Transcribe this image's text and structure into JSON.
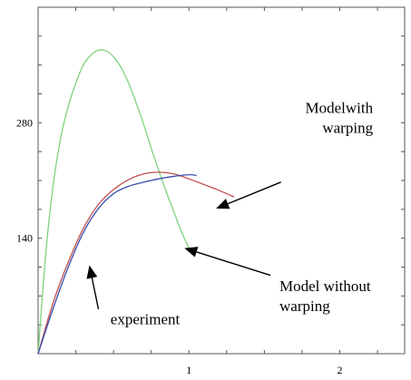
{
  "chart_data": {
    "type": "line",
    "title": "",
    "xlabel": "",
    "ylabel": "",
    "xlim": [
      0,
      2.43
    ],
    "ylim": [
      0,
      420
    ],
    "grid": false,
    "x_ticks": [
      {
        "value": 1,
        "label": "1"
      },
      {
        "value": 2,
        "label": "2"
      }
    ],
    "y_ticks": [
      {
        "value": 140,
        "label": "140"
      },
      {
        "value": 280,
        "label": "280"
      }
    ],
    "series": [
      {
        "name": "Model without warping",
        "color": "#7ed37e",
        "x": [
          0.0,
          0.05,
          0.1,
          0.15,
          0.2,
          0.25,
          0.3,
          0.35,
          0.4,
          0.45,
          0.5,
          0.55,
          0.6,
          0.65,
          0.7,
          0.75,
          0.8,
          0.85,
          0.9,
          0.95,
          1.0
        ],
        "y": [
          0,
          120,
          205,
          262,
          300,
          328,
          350,
          362,
          368,
          367,
          360,
          347,
          328,
          304,
          278,
          249,
          222,
          196,
          172,
          148,
          128
        ]
      },
      {
        "name": "Model with warping",
        "color": "#c0504d",
        "x": [
          0.0,
          0.1,
          0.2,
          0.3,
          0.4,
          0.5,
          0.6,
          0.7,
          0.8,
          0.9,
          1.0,
          1.1,
          1.2,
          1.3
        ],
        "y": [
          0,
          62,
          111,
          152,
          181,
          199,
          211,
          218,
          220,
          218,
          212,
          205,
          198,
          190
        ]
      },
      {
        "name": "experiment",
        "color": "#3a4fb0",
        "x": [
          0.0,
          0.1,
          0.2,
          0.3,
          0.4,
          0.5,
          0.6,
          0.7,
          0.8,
          0.9,
          1.0,
          1.05
        ],
        "y": [
          0,
          55,
          105,
          147,
          176,
          194,
          203,
          208,
          212,
          215,
          217,
          216
        ]
      }
    ],
    "annotations": [
      {
        "text_lines": [
          "Modelwith",
          "warping"
        ],
        "align": "right",
        "x": 2.22,
        "y": 292
      },
      {
        "text_lines": [
          "Model without",
          "warping"
        ],
        "align": "left",
        "x": 1.6,
        "y": 76
      },
      {
        "text_lines": [
          "experiment"
        ],
        "align": "left",
        "x": 0.48,
        "y": 36
      }
    ],
    "arrows": [
      {
        "from": [
          1.61,
          208
        ],
        "to": [
          1.18,
          176
        ]
      },
      {
        "from": [
          1.54,
          95
        ],
        "to": [
          0.97,
          128
        ]
      },
      {
        "from": [
          0.4,
          54
        ],
        "to": [
          0.34,
          107
        ]
      }
    ]
  }
}
